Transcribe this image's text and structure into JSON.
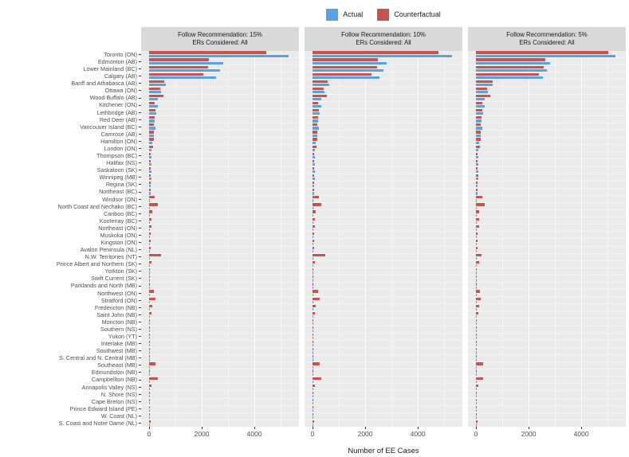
{
  "chart_data": {
    "type": "bar",
    "orientation": "horizontal",
    "xlabel": "Number of EE Cases",
    "x_ticks": [
      0,
      2000,
      4000
    ],
    "x_tick_labels": [
      "0",
      "2000",
      "4000"
    ],
    "minor_gridlines": [
      1000,
      3000,
      5000
    ],
    "xlim": [
      0,
      5600
    ],
    "grid": "on",
    "panel_background": "#EBEBEB",
    "strip_background": "#D9D9D9",
    "legend": {
      "position": "top",
      "entries": [
        {
          "label": "Actual",
          "color": "#58A1E4"
        },
        {
          "label": "Counterfactual",
          "color": "#C8534E"
        }
      ]
    },
    "categories": [
      "Toronto (ON)",
      "Edmonton (AB)",
      "Lower Mainland (BC)",
      "Calgary (AB)",
      "Banff and Athabasca (AB)",
      "Ottawa (ON)",
      "Wood Buffalo (AB)",
      "Kitchener (ON)",
      "Lethbridge (AB)",
      "Red Deer (AB)",
      "Vancouver Island (BC)",
      "Camrose (AB)",
      "Hamilton (ON)",
      "London (ON)",
      "Thompson (BC)",
      "Halifax (NS)",
      "Saskatoon (SK)",
      "Winnipeg (MB)",
      "Regina (SK)",
      "Northeast (BC)",
      "Windsor (ON)",
      "North Coast and Nechako (BC)",
      "Cariboo (BC)",
      "Kootenay (BC)",
      "Northeast (ON)",
      "Muskoka (ON)",
      "Kingston (ON)",
      "Avalon Peninsula (NL)",
      "N.W. Territories (NT)",
      "Prince Albert and Northern (SK)",
      "Yorkton (SK)",
      "Swift Current (SK)",
      "Parklands and North (MB)",
      "Northwest (ON)",
      "Stratford (ON)",
      "Fredericton (NB)",
      "Saint John (NB)",
      "Moncton (NB)",
      "Southern (NS)",
      "Yukon (YT)",
      "Interlake (MB)",
      "Southwest (MB)",
      "S. Central and N. Central (MB)",
      "Southeast (MB)",
      "Edmundston (NB)",
      "Campbellton (NB)",
      "Annapolis Valley (NS)",
      "N. Shore (NS)",
      "Cape Breton (NS)",
      "Prince Edward Island (PE)",
      "W. Coast (NL)",
      "S. Coast and Notre Dame (NL)"
    ],
    "panels": [
      {
        "title_line1": "Follow Recommendation: 15%",
        "title_line2": "ERs Considered: All",
        "series": [
          {
            "name": "Actual",
            "values": [
              5300,
              2800,
              2680,
              2530,
              640,
              450,
              320,
              320,
              265,
              205,
              235,
              175,
              115,
              90,
              100,
              90,
              90,
              80,
              70,
              60,
              35,
              35,
              30,
              30,
              25,
              25,
              25,
              30,
              30,
              25,
              20,
              20,
              15,
              15,
              15,
              15,
              15,
              15,
              10,
              10,
              10,
              10,
              10,
              10,
              10,
              10,
              10,
              10,
              10,
              10,
              10,
              10
            ]
          },
          {
            "name": "Counterfactual",
            "values": [
              4450,
              2260,
              2250,
              2060,
              560,
              410,
              530,
              210,
              230,
              200,
              175,
              175,
              175,
              145,
              60,
              65,
              65,
              70,
              50,
              50,
              225,
              320,
              115,
              100,
              100,
              60,
              50,
              60,
              460,
              100,
              30,
              25,
              30,
              195,
              255,
              110,
              90,
              30,
              25,
              20,
              30,
              20,
              15,
              250,
              25,
              320,
              90,
              25,
              20,
              20,
              25,
              60
            ]
          }
        ]
      },
      {
        "title_line1": "Follow Recommendation: 10%",
        "title_line2": "ERs Considered: All",
        "series": [
          {
            "name": "Actual",
            "values": [
              5300,
              2800,
              2680,
              2530,
              640,
              450,
              320,
              320,
              265,
              205,
              235,
              175,
              115,
              90,
              100,
              90,
              90,
              80,
              70,
              60,
              35,
              35,
              30,
              30,
              25,
              25,
              25,
              30,
              30,
              25,
              20,
              20,
              15,
              15,
              15,
              15,
              15,
              15,
              10,
              10,
              10,
              10,
              10,
              10,
              10,
              10,
              10,
              10,
              10,
              10,
              10,
              10
            ]
          },
          {
            "name": "Counterfactual",
            "values": [
              4790,
              2480,
              2440,
              2240,
              585,
              420,
              545,
              220,
              240,
              210,
              185,
              185,
              185,
              155,
              65,
              70,
              70,
              75,
              55,
              55,
              235,
              335,
              120,
              105,
              105,
              65,
              55,
              65,
              470,
              105,
              32,
              27,
              32,
              205,
              265,
              115,
              95,
              32,
              27,
              22,
              32,
              22,
              16,
              260,
              27,
              330,
              95,
              27,
              22,
              22,
              27,
              63
            ]
          }
        ]
      },
      {
        "title_line1": "Follow Recommendation: 5%",
        "title_line2": "ERs Considered: All",
        "series": [
          {
            "name": "Actual",
            "values": [
              5300,
              2800,
              2680,
              2530,
              640,
              450,
              320,
              320,
              265,
              205,
              235,
              175,
              115,
              90,
              100,
              90,
              90,
              80,
              70,
              60,
              35,
              35,
              30,
              30,
              25,
              25,
              25,
              30,
              30,
              25,
              20,
              20,
              15,
              15,
              15,
              15,
              15,
              15,
              10,
              10,
              10,
              10,
              10,
              10,
              10,
              10,
              10,
              10,
              10,
              10,
              10,
              10
            ]
          },
          {
            "name": "Counterfactual",
            "values": [
              5020,
              2630,
              2560,
              2390,
              630,
              435,
              555,
              230,
              250,
              218,
              192,
              192,
              192,
              160,
              68,
              73,
              73,
              78,
              58,
              58,
              245,
              345,
              125,
              110,
              110,
              68,
              58,
              68,
              210,
              110,
              34,
              29,
              34,
              160,
              170,
              120,
              100,
              34,
              29,
              24,
              34,
              24,
              17,
              268,
              29,
              280,
              100,
              29,
              24,
              24,
              29,
              66
            ]
          }
        ]
      }
    ]
  }
}
